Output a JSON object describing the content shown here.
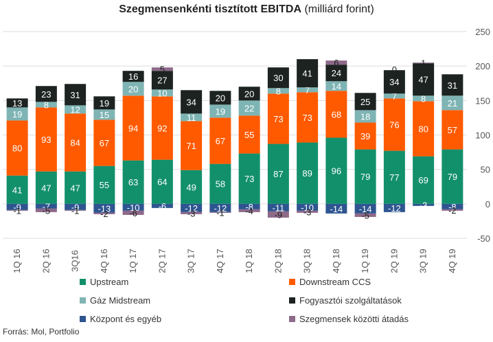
{
  "title_bold": "Szegmensenkénti tisztított EBITDA",
  "title_rest": " (milliárd forint)",
  "source": "Forrás: Mol, Portfolio",
  "chart_data": {
    "type": "bar",
    "stacked": true,
    "categories": [
      "1Q 16",
      "2Q 16",
      "3Q16",
      "4Q 16",
      "1Q 17",
      "2Q 17",
      "3Q 17",
      "4Q 17",
      "1Q 18",
      "2Q 18",
      "3Q 18",
      "4Q 18",
      "1Q 19",
      "2Q 19",
      "3Q 19",
      "4Q 19"
    ],
    "ylim": [
      -50,
      250
    ],
    "yticks": [
      -50,
      0,
      50,
      100,
      150,
      200,
      250
    ],
    "grid": true,
    "legend_position": "bottom",
    "series": [
      {
        "name": "Upstream",
        "color": "#12906c",
        "values": [
          41,
          47,
          47,
          55,
          63,
          64,
          49,
          58,
          73,
          87,
          89,
          96,
          79,
          77,
          69,
          79
        ]
      },
      {
        "name": "Downstream CCS",
        "color": "#ff5a00",
        "values": [
          80,
          93,
          84,
          67,
          94,
          92,
          71,
          67,
          55,
          73,
          73,
          68,
          39,
          76,
          80,
          57
        ]
      },
      {
        "name": "Gáz Midstream",
        "color": "#7fb4b4",
        "values": [
          19,
          8,
          12,
          15,
          20,
          10,
          11,
          19,
          22,
          8,
          7,
          14,
          18,
          7,
          8,
          21
        ]
      },
      {
        "name": "Fogyasztói szolgáltatások",
        "color": "#1c2320",
        "values": [
          13,
          23,
          31,
          19,
          16,
          27,
          34,
          20,
          20,
          30,
          41,
          24,
          25,
          34,
          47,
          31
        ]
      },
      {
        "name": "Központ és egyéb",
        "color": "#2e5590",
        "values": [
          -9,
          -7,
          -9,
          -13,
          -10,
          -6,
          -12,
          -12,
          -8,
          -11,
          -10,
          -14,
          -14,
          -12,
          -3,
          -8
        ]
      },
      {
        "name": "Szegmensek közötti átadás",
        "color": "#8e6a8a",
        "values": [
          -1,
          -5,
          -1,
          -2,
          -6,
          5,
          -3,
          -1,
          -4,
          -9,
          -3,
          6,
          -5,
          0,
          1,
          -2
        ]
      }
    ]
  }
}
